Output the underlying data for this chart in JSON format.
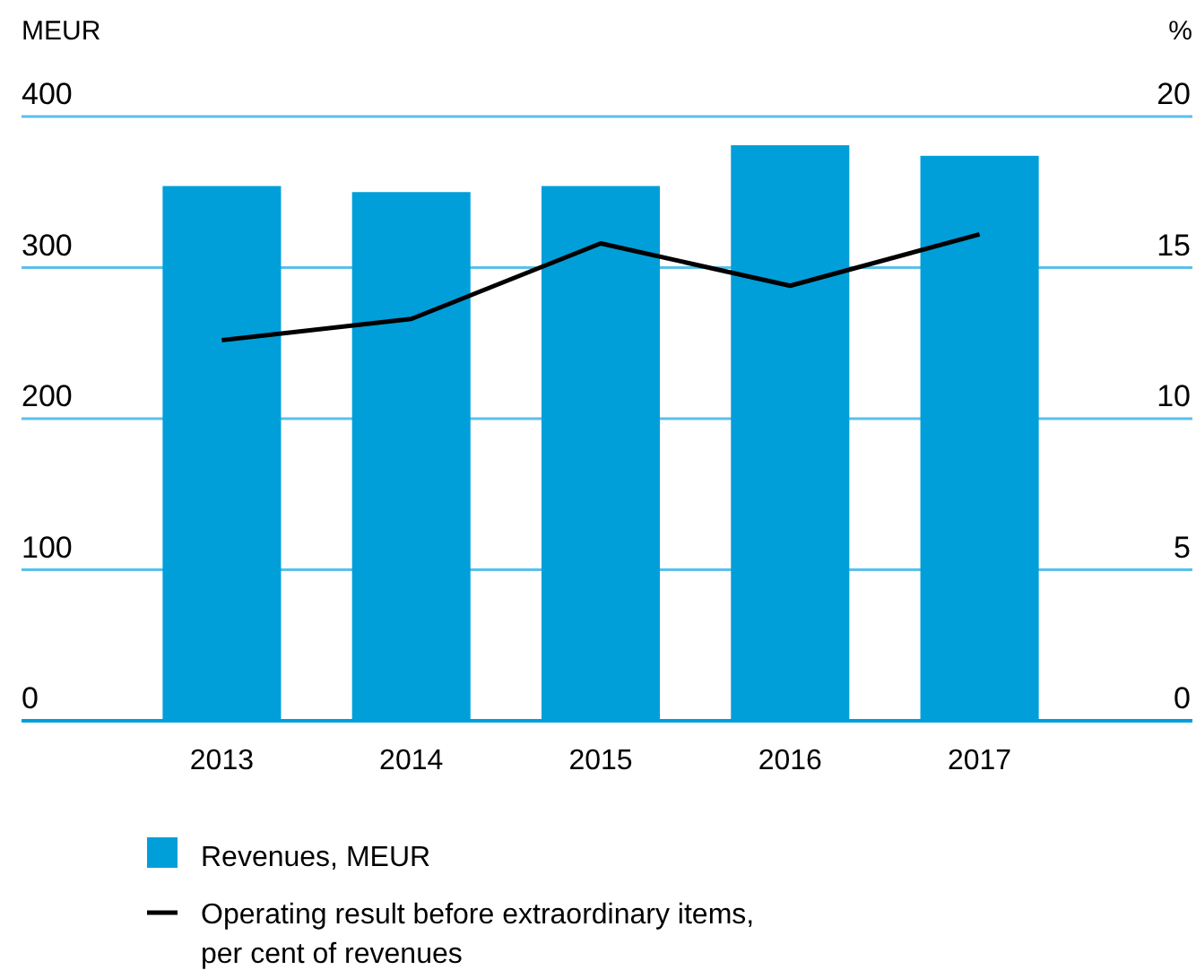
{
  "chart_data": {
    "type": "bar",
    "ylabel": "MEUR",
    "y2label": "%",
    "categories": [
      "2013",
      "2014",
      "2015",
      "2016",
      "2017"
    ],
    "series": [
      {
        "name": "Revenues, MEUR",
        "color": "#009fda",
        "values": [
          354,
          350,
          354,
          381,
          374
        ]
      },
      {
        "name": "Operating result before extraordinary items, per cent of revenues",
        "type": "line",
        "axis": "y2",
        "color": "#000000",
        "values": [
          12.6,
          13.3,
          15.8,
          14.4,
          16.1
        ]
      }
    ],
    "ylim": [
      0,
      400
    ],
    "yticks": [
      0,
      100,
      200,
      300,
      400
    ],
    "y2lim": [
      0,
      20
    ],
    "y2ticks": [
      0,
      5,
      10,
      15,
      20
    ],
    "grid": "y",
    "legend": "bottom",
    "marker": "none"
  }
}
